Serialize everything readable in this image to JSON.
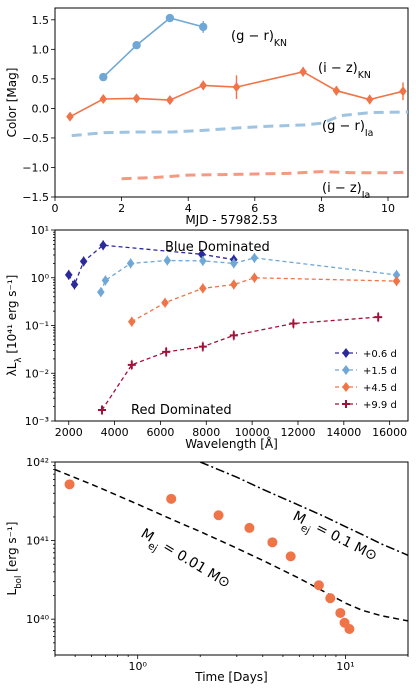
{
  "chart_data": [
    {
      "type": "line",
      "panel": "color-evolution",
      "xlabel": "MJD - 57982.53",
      "ylabel": "Color [Mag]",
      "xlim": [
        0,
        10.6
      ],
      "ylim": [
        -1.5,
        1.7
      ],
      "xticks": [
        0,
        2,
        4,
        6,
        8,
        10
      ],
      "yticks": [
        -1.5,
        -1.0,
        -0.5,
        0.0,
        0.5,
        1.0,
        1.5
      ],
      "xtick_labels": [
        "0",
        "2",
        "4",
        "6",
        "8",
        "10"
      ],
      "ytick_labels": [
        "−1.5",
        "−1.0",
        "−0.5",
        "0.0",
        "0.5",
        "1.0",
        "1.5"
      ],
      "series": [
        {
          "label": "(g − r)KN",
          "label_main": "(g − r)",
          "label_sub": "KN",
          "color": "#6fa8d6",
          "style": "solid",
          "marker": "circle",
          "x": [
            1.45,
            2.45,
            3.45,
            4.45
          ],
          "y": [
            0.53,
            1.07,
            1.53,
            1.38
          ],
          "yerr": [
            0.04,
            0.04,
            0.06,
            0.1
          ]
        },
        {
          "label": "(i − z)KN",
          "label_main": "(i − z)",
          "label_sub": "KN",
          "color": "#ef7448",
          "style": "solid",
          "marker": "diamond",
          "x": [
            0.45,
            1.45,
            2.45,
            3.45,
            4.45,
            5.45,
            7.45,
            8.45,
            9.45,
            10.45
          ],
          "y": [
            -0.14,
            0.16,
            0.17,
            0.14,
            0.39,
            0.36,
            0.62,
            0.3,
            0.15,
            0.29
          ],
          "yerr": [
            0.05,
            0.05,
            0.05,
            0.05,
            0.08,
            0.2,
            0.08,
            0.08,
            0.08,
            0.15
          ]
        },
        {
          "label": "(g − r)Ia",
          "label_main": "(g − r)",
          "label_sub": "Ia",
          "color": "#9fc4e2",
          "style": "dashed",
          "marker": "none",
          "x": [
            0.5,
            1.5,
            2.5,
            3.5,
            4.5,
            5.5,
            6.5,
            7.5,
            8.0,
            8.6,
            9.5,
            10.6
          ],
          "y": [
            -0.46,
            -0.41,
            -0.4,
            -0.4,
            -0.37,
            -0.33,
            -0.3,
            -0.28,
            -0.25,
            -0.12,
            -0.07,
            -0.06
          ]
        },
        {
          "label": "(i − z)Ia",
          "label_main": "(i − z)",
          "label_sub": "Ia",
          "color": "#f59a82",
          "style": "dashed",
          "marker": "none",
          "x": [
            2.0,
            3.0,
            4.0,
            5.0,
            6.0,
            7.0,
            8.0,
            9.0,
            10.0,
            10.6
          ],
          "y": [
            -1.19,
            -1.17,
            -1.13,
            -1.12,
            -1.11,
            -1.1,
            -1.07,
            -1.09,
            -1.09,
            -1.08
          ]
        }
      ]
    },
    {
      "type": "line",
      "panel": "sed",
      "xlabel": "Wavelength [Å]",
      "ylabel": "λLλ [10⁴¹ erg s⁻¹]",
      "ylabel_main": "λL",
      "ylabel_sub": "λ",
      "ylabel_rest": " [10⁴¹ erg s⁻¹]",
      "xlim": [
        1400,
        16800
      ],
      "ylim": [
        0.001,
        10
      ],
      "yscale": "log",
      "xticks": [
        2000,
        4000,
        6000,
        8000,
        10000,
        12000,
        14000,
        16000
      ],
      "xtick_labels": [
        "2000",
        "4000",
        "6000",
        "8000",
        "10000",
        "12000",
        "14000",
        "16000"
      ],
      "yticks": [
        0.001,
        0.01,
        0.1,
        1,
        10
      ],
      "ytick_labels": [
        "10⁻³",
        "10⁻²",
        "10⁻¹",
        "10⁰",
        "10¹"
      ],
      "annotations": [
        "Blue Dominated",
        "Red Dominated"
      ],
      "legend": "lower-right",
      "series": [
        {
          "name": "+0.6 d",
          "color": "#2c2a9a",
          "marker": "diamond",
          "x": [
            2000,
            2250,
            2650,
            3500,
            7800,
            9200
          ],
          "y": [
            1.15,
            0.72,
            2.2,
            4.8,
            3.1,
            2.4
          ]
        },
        {
          "name": "+1.5 d",
          "color": "#6fa8d6",
          "marker": "diamond",
          "x": [
            3400,
            3600,
            4700,
            6300,
            7850,
            9200,
            10100,
            16300
          ],
          "y": [
            0.5,
            0.88,
            2.0,
            2.3,
            2.25,
            2.0,
            2.6,
            1.15
          ]
        },
        {
          "name": "+4.5 d",
          "color": "#ef7448",
          "marker": "diamond",
          "x": [
            4750,
            6200,
            7850,
            9200,
            10100,
            16300
          ],
          "y": [
            0.12,
            0.3,
            0.6,
            0.72,
            1.0,
            0.85
          ]
        },
        {
          "name": "+9.9 d",
          "color": "#a3103a",
          "marker": "plus",
          "x": [
            3450,
            4750,
            6250,
            7850,
            9200,
            11800,
            15500
          ],
          "y": [
            0.0017,
            0.015,
            0.028,
            0.036,
            0.062,
            0.11,
            0.15
          ]
        }
      ]
    },
    {
      "type": "scatter",
      "panel": "bolometric",
      "xlabel": "Time [Days]",
      "ylabel": "Lbol [erg s⁻¹]",
      "ylabel_main": "L",
      "ylabel_sub": "bol",
      "ylabel_rest": " [erg s⁻¹]",
      "xscale": "log",
      "yscale": "log",
      "xlim": [
        0.4,
        20
      ],
      "ylim": [
        3.5e+39,
        1e+42
      ],
      "xticks": [
        1,
        10
      ],
      "xtick_labels": [
        "10⁰",
        "10¹"
      ],
      "yticks": [
        1e+40,
        1e+41,
        1e+42
      ],
      "ytick_labels": [
        "10⁴⁰",
        "10⁴¹",
        "10⁴²"
      ],
      "points": {
        "color": "#ef7448",
        "x": [
          0.47,
          1.45,
          2.45,
          3.45,
          4.45,
          5.45,
          7.45,
          8.45,
          9.45,
          9.9,
          10.45
        ],
        "y": [
          5.2e+41,
          3.4e+41,
          2.1e+41,
          1.45e+41,
          9.5e+40,
          6.3e+40,
          2.7e+40,
          1.85e+40,
          1.2e+40,
          9e+39,
          7.5e+39
        ]
      },
      "models": [
        {
          "label": "Mej = 0.01 M⊙",
          "label_main": "M",
          "label_sub": "ej",
          "label_rest": " = 0.01 M⊙",
          "style": "dashed",
          "color": "#000000",
          "x": [
            0.4,
            0.6,
            1.0,
            1.5,
            2.0,
            3.0,
            4.0,
            6.0,
            8.0,
            10.0,
            12.0,
            15.0,
            20.0
          ],
          "y": [
            8e+41,
            5.2e+41,
            2.9e+41,
            1.8e+41,
            1.3e+41,
            8e+40,
            5.6e+40,
            3.3e+40,
            2.2e+40,
            1.6e+40,
            1.3e+40,
            1.1e+40,
            9.5e+39
          ]
        },
        {
          "label": "Mej = 0.1 M⊙",
          "label_main": "M",
          "label_sub": "ej",
          "label_rest": " = 0.1 M⊙",
          "style": "dashdot",
          "color": "#000000",
          "x": [
            2.0,
            3.0,
            4.0,
            6.0,
            8.0,
            10.0,
            12.0,
            15.0,
            20.0
          ],
          "y": [
            1e+42,
            6.4e+41,
            4.5e+41,
            2.8e+41,
            2e+41,
            1.5e+41,
            1.2e+41,
            9e+40,
            6.5e+40
          ]
        }
      ]
    }
  ]
}
